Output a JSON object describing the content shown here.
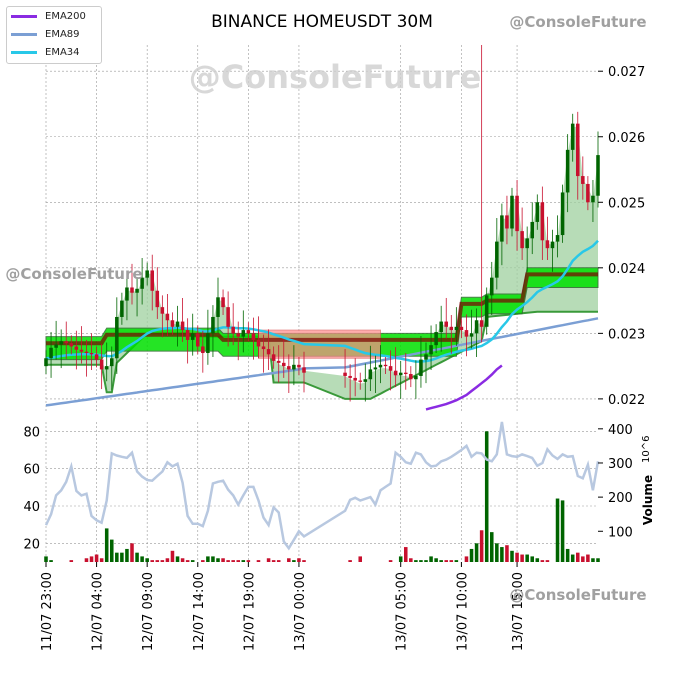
{
  "title": "BINANCE HOMEUSDT 30M",
  "watermark": "@ConsoleFuture",
  "legend": [
    {
      "label": "EMA200",
      "color": "#8a2be2"
    },
    {
      "label": "EMA89",
      "color": "#7b9fd4"
    },
    {
      "label": "EMA34",
      "color": "#28c8e8"
    }
  ],
  "colors": {
    "up": "#006400",
    "down": "#c8102e",
    "cloud_fill": "#9fd09f",
    "cloud_edge": "#3a9a3a",
    "supertrend_up": "#00e000",
    "supertrend_down": "#ff8a8a",
    "volume_line": "#b8c8e0"
  },
  "chart_data": [
    {
      "type": "candlestick",
      "title": "BINANCE HOMEUSDT 30M",
      "ylabel_right": "",
      "ylim": [
        0.0218,
        0.0274
      ],
      "yticks": [
        0.022,
        0.023,
        0.024,
        0.025,
        0.026,
        0.027
      ],
      "ytick_labels": [
        "0.022",
        "0.023",
        "0.024",
        "0.025",
        "0.026",
        "0.027"
      ],
      "xtick_labels": [
        "11/07 23:00",
        "12/07 04:00",
        "12/07 09:00",
        "12/07 14:00",
        "12/07 19:00",
        "13/07 00:00",
        "13/07 05:00",
        "13/07 10:00",
        "13/07 15:00"
      ],
      "grid": true,
      "close": [
        0.02262,
        0.02278,
        0.02283,
        0.02288,
        0.02285,
        0.0228,
        0.02275,
        0.02272,
        0.0227,
        0.02268,
        0.0226,
        0.02245,
        0.0225,
        0.02262,
        0.02325,
        0.0235,
        0.0237,
        0.02362,
        0.02368,
        0.02385,
        0.02396,
        0.02365,
        0.0234,
        0.0233,
        0.0232,
        0.0231,
        0.02318,
        0.02305,
        0.0229,
        0.023,
        0.0228,
        0.0227,
        0.023,
        0.02325,
        0.02355,
        0.0234,
        0.0231,
        0.023,
        0.02295,
        0.02305,
        0.023,
        0.0229,
        0.0228,
        0.02276,
        0.02268,
        0.02258,
        0.02255,
        0.0225,
        0.02245,
        0.02252,
        0.02248,
        0.0224,
        0.02235,
        0.02232,
        0.02228,
        0.02226,
        0.0223,
        0.02245,
        0.02248,
        0.02252,
        0.0225,
        0.02243,
        0.02236,
        0.0224,
        0.02238,
        0.0223,
        0.02235,
        0.0226,
        0.02268,
        0.02282,
        0.02302,
        0.02318,
        0.0231,
        0.02305,
        0.0231,
        0.02305,
        0.02295,
        0.023,
        0.0232,
        0.0231,
        0.02358,
        0.02385,
        0.0244,
        0.0248,
        0.0246,
        0.0251,
        0.02456,
        0.0243,
        0.02445,
        0.0247,
        0.025,
        0.02442,
        0.0243,
        0.0244,
        0.0245,
        0.02515,
        0.0258,
        0.0262,
        0.0254,
        0.02528,
        0.025,
        0.0251,
        0.02572
      ],
      "volume": [
        13,
        11,
        10,
        9,
        10,
        11,
        10,
        10,
        12,
        13,
        14,
        12,
        28,
        22,
        15,
        15,
        17,
        20,
        15,
        13,
        12,
        11,
        11,
        11,
        12,
        16,
        13,
        12,
        11,
        11,
        10,
        11,
        13,
        13,
        12,
        12,
        11,
        11,
        11,
        11,
        11,
        10,
        11,
        10,
        12,
        11,
        11,
        10,
        12,
        11,
        12,
        11,
        10,
        11,
        10,
        13,
        10,
        10,
        10,
        10,
        10,
        11,
        10,
        13,
        18,
        12,
        11,
        11,
        11,
        13,
        12,
        11,
        11,
        11,
        11,
        10,
        13,
        17,
        20,
        27,
        80,
        26,
        20,
        18,
        19,
        16,
        15,
        14,
        14,
        13,
        12,
        11,
        11,
        10,
        44,
        43,
        17,
        14,
        15,
        13,
        14,
        12,
        12
      ],
      "volume_axis": {
        "ylim_left": [
          10,
          85
        ],
        "yticks_left": [
          20,
          40,
          60,
          80
        ],
        "ylim_right": [
          10,
          420
        ],
        "yticks_right": [
          100,
          200,
          300,
          400
        ],
        "ylabel": "Volume",
        "exponent": "10^6"
      },
      "volume_line": [
        118,
        150,
        205,
        220,
        245,
        290,
        218,
        205,
        210,
        145,
        132,
        125,
        190,
        328,
        322,
        318,
        315,
        330,
        275,
        260,
        250,
        248,
        262,
        275,
        302,
        290,
        298,
        242,
        145,
        122,
        122,
        115,
        160,
        240,
        245,
        248,
        222,
        205,
        178,
        205,
        230,
        230,
        190,
        140,
        118,
        170,
        155,
        70,
        50,
        75,
        100,
        85,
        160,
        192,
        198,
        190,
        195,
        200,
        178,
        220,
        230,
        240,
        330,
        318,
        302,
        298,
        330,
        325,
        302,
        290,
        292,
        305,
        310,
        318,
        328,
        338,
        350,
        318,
        330,
        328,
        310,
        305,
        325,
        420,
        325,
        320,
        318,
        325,
        320,
        315,
        292,
        300,
        340,
        322,
        312,
        325,
        318,
        320,
        262,
        255,
        295,
        220,
        305
      ],
      "ema200": [
        null,
        null,
        null,
        null,
        null,
        null,
        null,
        null,
        null,
        null,
        null,
        null,
        null,
        null,
        null,
        null,
        null,
        null,
        null,
        null,
        null,
        null,
        null,
        null,
        null,
        null,
        null,
        null,
        null,
        null,
        null,
        null,
        null,
        null,
        null,
        null,
        null,
        null,
        null,
        null,
        null,
        null,
        null,
        null,
        null,
        null,
        null,
        null,
        null,
        null,
        null,
        null,
        null,
        null,
        null,
        null,
        null,
        null,
        null,
        null,
        null,
        null,
        null,
        null,
        null,
        null,
        null,
        null,
        0.02184,
        0.02186,
        0.02188,
        0.0219,
        0.02192,
        0.02195,
        0.02198,
        0.02202,
        0.02206,
        0.02212,
        0.02218,
        0.02224,
        0.0223,
        0.02237,
        0.02245,
        0.02251
      ]
    }
  ]
}
